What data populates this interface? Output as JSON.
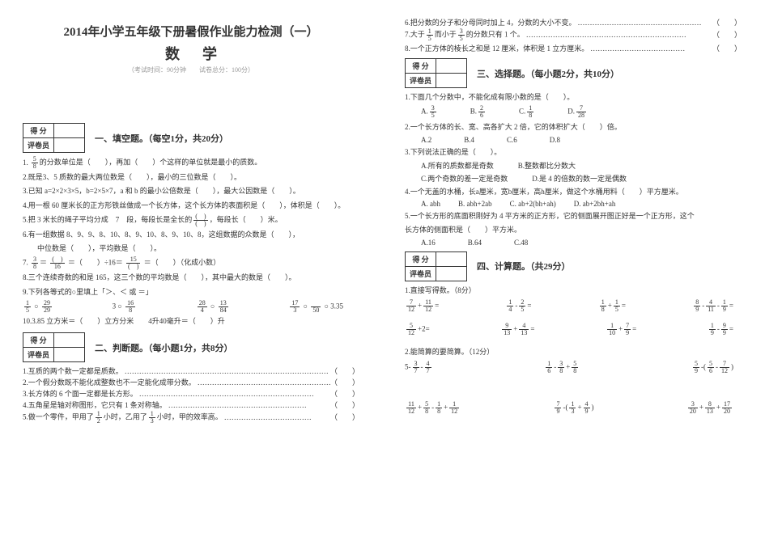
{
  "header": {
    "title": "2014年小学五年级下册暑假作业能力检测（一）",
    "subject": "数学",
    "meta": "（考试时间：90分钟　　试卷总分：100分）"
  },
  "scorebox": {
    "score": "得 分",
    "reviewer": "评卷员"
  },
  "sections": {
    "fill": "一、填空题。（每空1分，共20分）",
    "judge": "二、判断题。（每小题1分，共8分）",
    "choice": "三、选择题。（每小题2分，共10分）",
    "calc": "四、计算题。（共29分）"
  },
  "fill": {
    "q1a": "的分数单位是（　　），再加（　　）个这样的单位就是最小的质数。",
    "q2": "2.既是3、5 质数的最大两位数是（　　），最小的三位数是（　　）。",
    "q3": "3.已知 a=2×2×3×5，b=2×5×7，a 和 b 的最小公倍数是（　　），最大公因数是（　　）。",
    "q4": "4.用一根 60 厘米长的正方形铁丝做成一个长方体，这个长方体的表面积是（　　），体积是（　　）。",
    "q5a": "5.把 3 米长的绳子平均分成　7　段，每段长是全长的",
    "q5b": "，每段长（　　）米。",
    "q6a": "6.有一组数据 8、9、9、8、10、8、9、10、8、9、10、8，这组数据的众数是（　　），",
    "q6b": "中位数是（　　），平均数是（　　）。",
    "q7a": "7.",
    "q7b": "＝（　　）÷16＝",
    "q7c": "＝（　　）（化成小数）",
    "q8": "8.三个连续奇数的和是 165，这三个数的平均数是（　　），其中最大的数是（　　）。",
    "q9": "9.下列各等式的○里填上「＞、＜ 或 ＝」",
    "q9opts": [
      "1   ○  29",
      "3   ○  16",
      "28   ○  13",
      "17   ○  3.35"
    ],
    "q9opts_sub": [
      "5        29",
      "                8",
      "4      84",
      "3        50"
    ],
    "q10": "10.3.85 立方米＝（　　）立方分米　　4升40毫升＝（　　）升"
  },
  "judge": {
    "q1": "1.互质的两个数一定都是质数。",
    "q2": "2.一个假分数既不能化成整数也不一定能化成带分数。",
    "q3": "3.长方体的 6 个面一定都是长方形。",
    "q4": "4.五角星是轴对称图形，它只有 1 条对称轴。",
    "q5a": "5.做一个零件，甲用了",
    "q5b": "小时，乙用了",
    "q5c": "小时，甲的效率高。",
    "end": "（　　）",
    "q6": "6.把分数的分子和分母同时加上 4，分数的大小不变。",
    "q7a": "7.大于",
    "q7b": "而小于",
    "q7c": "的分数只有 1 个。",
    "q8": "8.一个正方体的棱长之和是 12 厘米，体积是 1 立方厘米。"
  },
  "choice": {
    "q1": "1.下面几个分数中，不能化成有限小数的是（　　）。",
    "q1opts": [
      "A.",
      "B.",
      "C.",
      "D."
    ],
    "q2": "2.一个长方体的长、宽、高各扩大 2 倍，它的体积扩大（　　）倍。",
    "q2opts": [
      "A.2",
      "B.4",
      "C.6",
      "D.8"
    ],
    "q3": "3.下列说法正确的是（　　）。",
    "q3opts": [
      "A.所有的质数都是奇数",
      "B.整数都比分数大"
    ],
    "q3opts2": [
      "C.两个奇数的差一定是奇数",
      "D.是 4 的倍数的数一定是偶数"
    ],
    "q4": "4.一个无盖的水桶，长a厘米，宽b厘米，高h厘米，做这个水桶用料（　　）平方厘米。",
    "q4opts": [
      "A. abh",
      "B. abh+2ab",
      "C. ab+2(bh+ah)",
      "D. ab+2bh+ah"
    ],
    "q5a": "5.一个长方形的底面积刚好为 4 平方米的正方形，它的侧面展开图正好是一个正方形，这个",
    "q5b": "长方体的侧面积是（　　）平方米。",
    "q5opts": [
      "A.16",
      "B.64",
      "C.48"
    ]
  },
  "calc": {
    "h1": "1.直接写得数。（8分）",
    "r1": [
      "7   11",
      "1   2",
      "1   1",
      "8   4   1"
    ],
    "r1f": [
      "—+—=",
      "— - —=",
      "—+—=",
      "—-—-—="
    ],
    "r1d": [
      "12  12",
      "4   5",
      "8   5",
      "9  11  9"
    ],
    "r2": [
      "5",
      "9   4",
      "1    7",
      "1   9"
    ],
    "r2f": [
      "—+2=",
      "—+—=",
      "—+—=",
      "—-—="
    ],
    "r2d": [
      "12",
      "13  13",
      "10   9",
      "9   9"
    ],
    "h2": "2.能简算的要简算。（12分）",
    "row2": [
      {
        "a": "3",
        "b": "4",
        "c": "",
        "op1": "5-—-—",
        "d": "7",
        "e": "7"
      },
      {
        "a": "1",
        "b": "3",
        "c": "5",
        "op1": "—-—+—",
        "d": "6",
        "e": "8",
        "f": "8"
      },
      {
        "a": "5",
        "b": "5",
        "c": "7",
        "op1": "—-（—-—）",
        "d": "9",
        "e": "6",
        "f": "12"
      }
    ],
    "row3": [
      {
        "a": "11",
        "b": "5",
        "c": "1",
        "g": "1",
        "op1": "—+—-—+—",
        "d": "12",
        "e": "8",
        "f": "8",
        "h": "12"
      },
      {
        "a": "7",
        "b": "1",
        "c": "4",
        "op1": "—-（—+—）",
        "d": "9",
        "e": "3",
        "f": "9"
      },
      {
        "a": "3",
        "b": "8",
        "c": "17",
        "op1": "—+—+—",
        "d": "20",
        "e": "13",
        "f": "20"
      }
    ]
  }
}
